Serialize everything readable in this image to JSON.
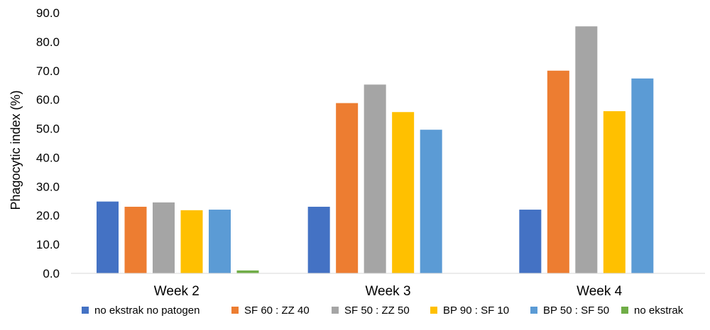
{
  "chart_data": {
    "type": "bar",
    "title": "",
    "xlabel": "",
    "ylabel": "Phagocytic index (%)",
    "ylim": [
      0,
      90
    ],
    "yticks": [
      "0.0",
      "10.0",
      "20.0",
      "30.0",
      "40.0",
      "50.0",
      "60.0",
      "70.0",
      "80.0",
      "90.0"
    ],
    "grid": false,
    "legend_position": "bottom",
    "categories": [
      "Week 2",
      "Week 3",
      "Week 4"
    ],
    "series": [
      {
        "name": "no ekstrak no patogen",
        "color": "#4472C4",
        "values": [
          24.8,
          23.0,
          22.0
        ]
      },
      {
        "name": "SF 60 : ZZ 40",
        "color": "#ED7D31",
        "values": [
          23.0,
          58.8,
          70.0
        ]
      },
      {
        "name": "SF 50 : ZZ 50",
        "color": "#A5A5A5",
        "values": [
          24.5,
          65.2,
          85.3
        ]
      },
      {
        "name": "BP 90 : SF 10",
        "color": "#FFC000",
        "values": [
          21.8,
          55.7,
          56.0
        ]
      },
      {
        "name": "BP 50 : SF 50",
        "color": "#5B9BD5",
        "values": [
          22.0,
          49.6,
          67.3
        ]
      },
      {
        "name": "no ekstrak",
        "color": "#70AD47",
        "values": [
          1.0,
          0,
          0
        ]
      }
    ]
  }
}
